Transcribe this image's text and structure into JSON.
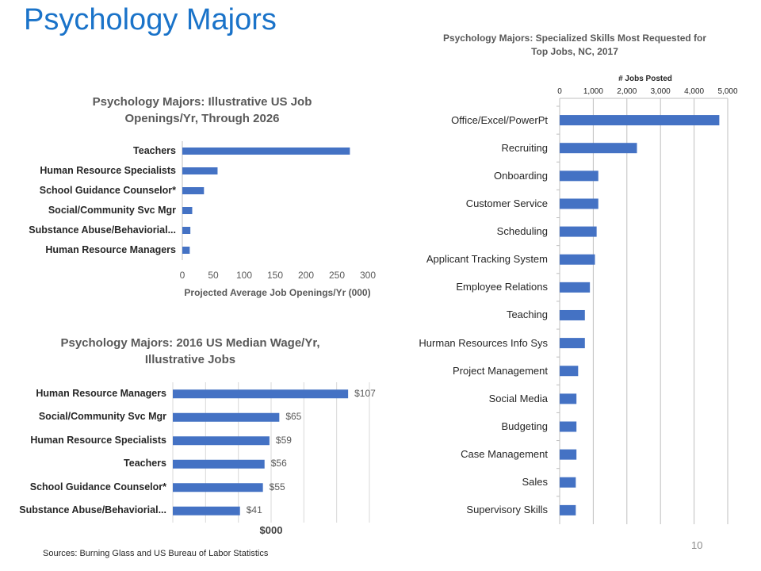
{
  "slide": {
    "title": "Psychology Majors",
    "footer": "Sources: Burning Glass and US Bureau of Labor Statistics",
    "page_number": "10"
  },
  "colors": {
    "bar": "#4472c4",
    "title": "#1a73c9",
    "grid": "#bfbfbf",
    "text": "#595959"
  },
  "chart_data": [
    {
      "id": "openings",
      "type": "bar",
      "orientation": "horizontal",
      "title_lines": [
        "Psychology Majors: Illustrative US Job",
        "Openings/Yr, Through 2026"
      ],
      "categories": [
        "Teachers",
        "Human Resource Specialists",
        "School Guidance Counselor*",
        "Social/Community Svc Mgr",
        "Substance Abuse/Behaviorial...",
        "Human Resource Managers"
      ],
      "values": [
        271,
        57,
        35,
        16,
        13,
        12
      ],
      "xlabel": "Projected Average Job Openings/Yr (000)",
      "xticks": [
        "0",
        "50",
        "100",
        "150",
        "200",
        "250",
        "300"
      ],
      "xlim": [
        0,
        300
      ],
      "grid": false
    },
    {
      "id": "wages",
      "type": "bar",
      "orientation": "horizontal",
      "title_lines": [
        "Psychology Majors: 2016 US Median Wage/Yr,",
        "Illustrative Jobs"
      ],
      "categories": [
        "Human Resource Managers",
        "Social/Community Svc Mgr",
        "Human Resource Specialists",
        "Teachers",
        "School Guidance Counselor*",
        "Substance Abuse/Behaviorial..."
      ],
      "values": [
        107,
        65,
        59,
        56,
        55,
        41
      ],
      "data_labels": [
        "$107",
        "$65",
        "$59",
        "$56",
        "$55",
        "$41"
      ],
      "xlabel": "$000",
      "xlim": [
        0,
        120
      ],
      "grid": true
    },
    {
      "id": "skills",
      "type": "bar",
      "orientation": "horizontal",
      "title_lines": [
        "Psychology Majors: Specialized  Skills Most Requested for",
        "Top Jobs, NC, 2017"
      ],
      "categories": [
        "Office/Excel/PowerPt",
        "Recruiting",
        "Onboarding",
        "Customer Service",
        "Scheduling",
        "Applicant Tracking System",
        "Employee Relations",
        "Teaching",
        "Hurman Resources Info Sys",
        "Project Management",
        "Social Media",
        "Budgeting",
        "Case Management",
        "Sales",
        "Supervisory Skills"
      ],
      "values": [
        4750,
        2300,
        1150,
        1150,
        1100,
        1050,
        900,
        750,
        750,
        550,
        500,
        500,
        500,
        480,
        480
      ],
      "xlabel": "# Jobs Posted",
      "xticks": [
        "0",
        "1,000",
        "2,000",
        "3,000",
        "4,000",
        "5,000"
      ],
      "xlim": [
        0,
        5000
      ],
      "axis_position": "top",
      "grid": true
    }
  ]
}
